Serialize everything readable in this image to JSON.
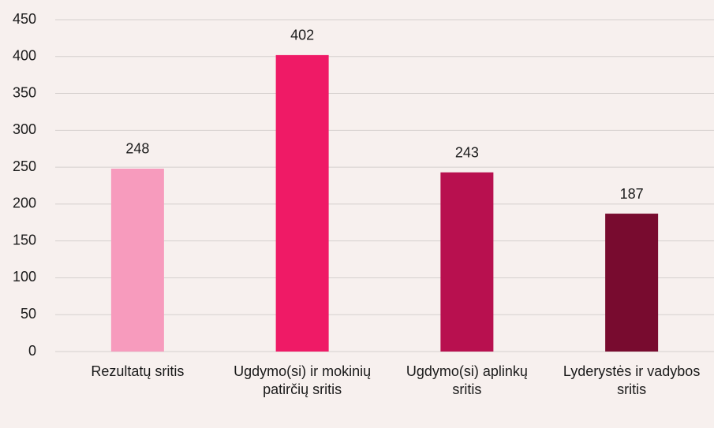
{
  "chart_data": {
    "type": "bar",
    "categories": [
      "Rezultatų sritis",
      "Ugdymo(si) ir mokinių patirčių sritis",
      "Ugdymo(si) aplinkų sritis",
      "Lyderystės ir vadybos sritis"
    ],
    "values": [
      248,
      402,
      243,
      187
    ],
    "colors": [
      "#f79bbd",
      "#ef1a66",
      "#b8104f",
      "#780b2f"
    ],
    "ylim": [
      0,
      450
    ],
    "yticks": [
      0,
      50,
      100,
      150,
      200,
      250,
      300,
      350,
      400,
      450
    ],
    "grid": true
  }
}
